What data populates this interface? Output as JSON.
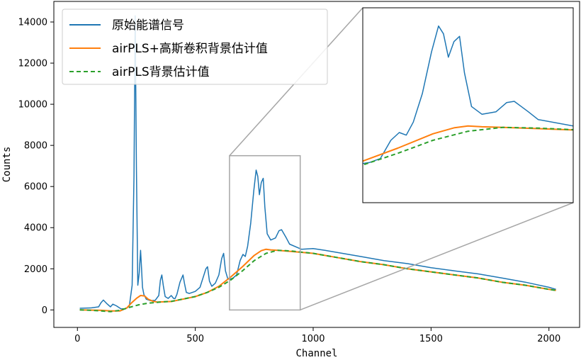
{
  "chart_data": {
    "type": "line",
    "xlabel": "Channel",
    "ylabel": "Counts",
    "xlim": [
      -100,
      2130
    ],
    "ylim": [
      -850,
      15000
    ],
    "xticks": [
      "0",
      "500",
      "1000",
      "1500",
      "2000"
    ],
    "xtick_values": [
      0,
      500,
      1000,
      1500,
      2000
    ],
    "yticks": [
      "0",
      "2000",
      "4000",
      "6000",
      "8000",
      "10000",
      "12000",
      "14000"
    ],
    "ytick_values": [
      0,
      2000,
      4000,
      6000,
      8000,
      10000,
      12000,
      14000
    ],
    "legend_position": "top-left",
    "grid": false,
    "series": [
      {
        "name": "原始能谱信号",
        "color": "#1f77b4",
        "style": "solid",
        "x": [
          10,
          60,
          90,
          100,
          110,
          125,
          140,
          150,
          165,
          185,
          205,
          220,
          232,
          240,
          245,
          250,
          256,
          262,
          268,
          272,
          276,
          282,
          292,
          310,
          330,
          345,
          352,
          358,
          364,
          372,
          385,
          398,
          408,
          414,
          422,
          435,
          448,
          454,
          462,
          475,
          500,
          520,
          545,
          552,
          560,
          570,
          585,
          600,
          612,
          620,
          628,
          638,
          648,
          660,
          675,
          690,
          702,
          712,
          722,
          735,
          748,
          758,
          765,
          772,
          780,
          788,
          795,
          805,
          820,
          840,
          855,
          866,
          876,
          886,
          900,
          950,
          1000,
          1050,
          1100,
          1200,
          1300,
          1400,
          1500,
          1600,
          1700,
          1800,
          1900,
          2000,
          2030
        ],
        "values": [
          80,
          100,
          150,
          350,
          480,
          300,
          150,
          280,
          200,
          50,
          60,
          180,
          1200,
          6500,
          14300,
          7000,
          1200,
          1800,
          2900,
          2000,
          1100,
          750,
          520,
          450,
          470,
          700,
          1450,
          1700,
          1200,
          650,
          560,
          700,
          560,
          550,
          760,
          1350,
          1700,
          1300,
          850,
          800,
          900,
          1100,
          2000,
          2100,
          1400,
          1150,
          1300,
          1700,
          2500,
          2750,
          1900,
          1500,
          1500,
          1550,
          1700,
          2400,
          2700,
          2600,
          3100,
          4200,
          5800,
          6800,
          6500,
          5600,
          6200,
          6400,
          5000,
          3700,
          3400,
          3500,
          3850,
          3900,
          3700,
          3500,
          3200,
          2950,
          2980,
          2900,
          2800,
          2600,
          2400,
          2250,
          2050,
          1900,
          1750,
          1550,
          1350,
          1100,
          1000
        ]
      },
      {
        "name": "airPLS+高斯卷积背景估计值",
        "color": "#ff7f0e",
        "style": "solid",
        "x": [
          10,
          60,
          100,
          140,
          180,
          210,
          230,
          250,
          268,
          285,
          300,
          320,
          340,
          400,
          500,
          550,
          600,
          650,
          700,
          750,
          780,
          800,
          820,
          850,
          900,
          1000,
          1100,
          1200,
          1300,
          1400,
          1500,
          1600,
          1700,
          1800,
          1900,
          2000,
          2030
        ],
        "values": [
          0,
          -10,
          -20,
          -50,
          -50,
          100,
          350,
          560,
          700,
          680,
          520,
          420,
          380,
          410,
          650,
          850,
          1150,
          1600,
          2100,
          2650,
          2880,
          2950,
          2920,
          2900,
          2850,
          2750,
          2550,
          2350,
          2200,
          2000,
          1850,
          1700,
          1550,
          1350,
          1200,
          1000,
          950
        ]
      },
      {
        "name": "airPLS背景估计值",
        "color": "#2ca02c",
        "style": "dashed",
        "x": [
          10,
          60,
          100,
          140,
          180,
          220,
          260,
          300,
          350,
          400,
          500,
          550,
          600,
          650,
          700,
          750,
          800,
          850,
          900,
          1000,
          1100,
          1200,
          1300,
          1400,
          1500,
          1600,
          1700,
          1800,
          1900,
          2000,
          2030
        ],
        "values": [
          0,
          -20,
          -50,
          -80,
          -20,
          120,
          250,
          330,
          380,
          420,
          650,
          850,
          1100,
          1450,
          1900,
          2400,
          2750,
          2900,
          2870,
          2750,
          2550,
          2350,
          2200,
          2000,
          1850,
          1700,
          1550,
          1350,
          1200,
          1000,
          950
        ]
      }
    ],
    "inset": {
      "xlim": [
        650,
        950
      ],
      "ylim": [
        0,
        7500
      ],
      "source_box": {
        "x0": 645,
        "x1": 945,
        "y0": 0,
        "y1": 7500
      }
    }
  },
  "colors": {
    "frame": "#000000",
    "zoom_box": "#a6a6a6",
    "background": "#ffffff"
  }
}
